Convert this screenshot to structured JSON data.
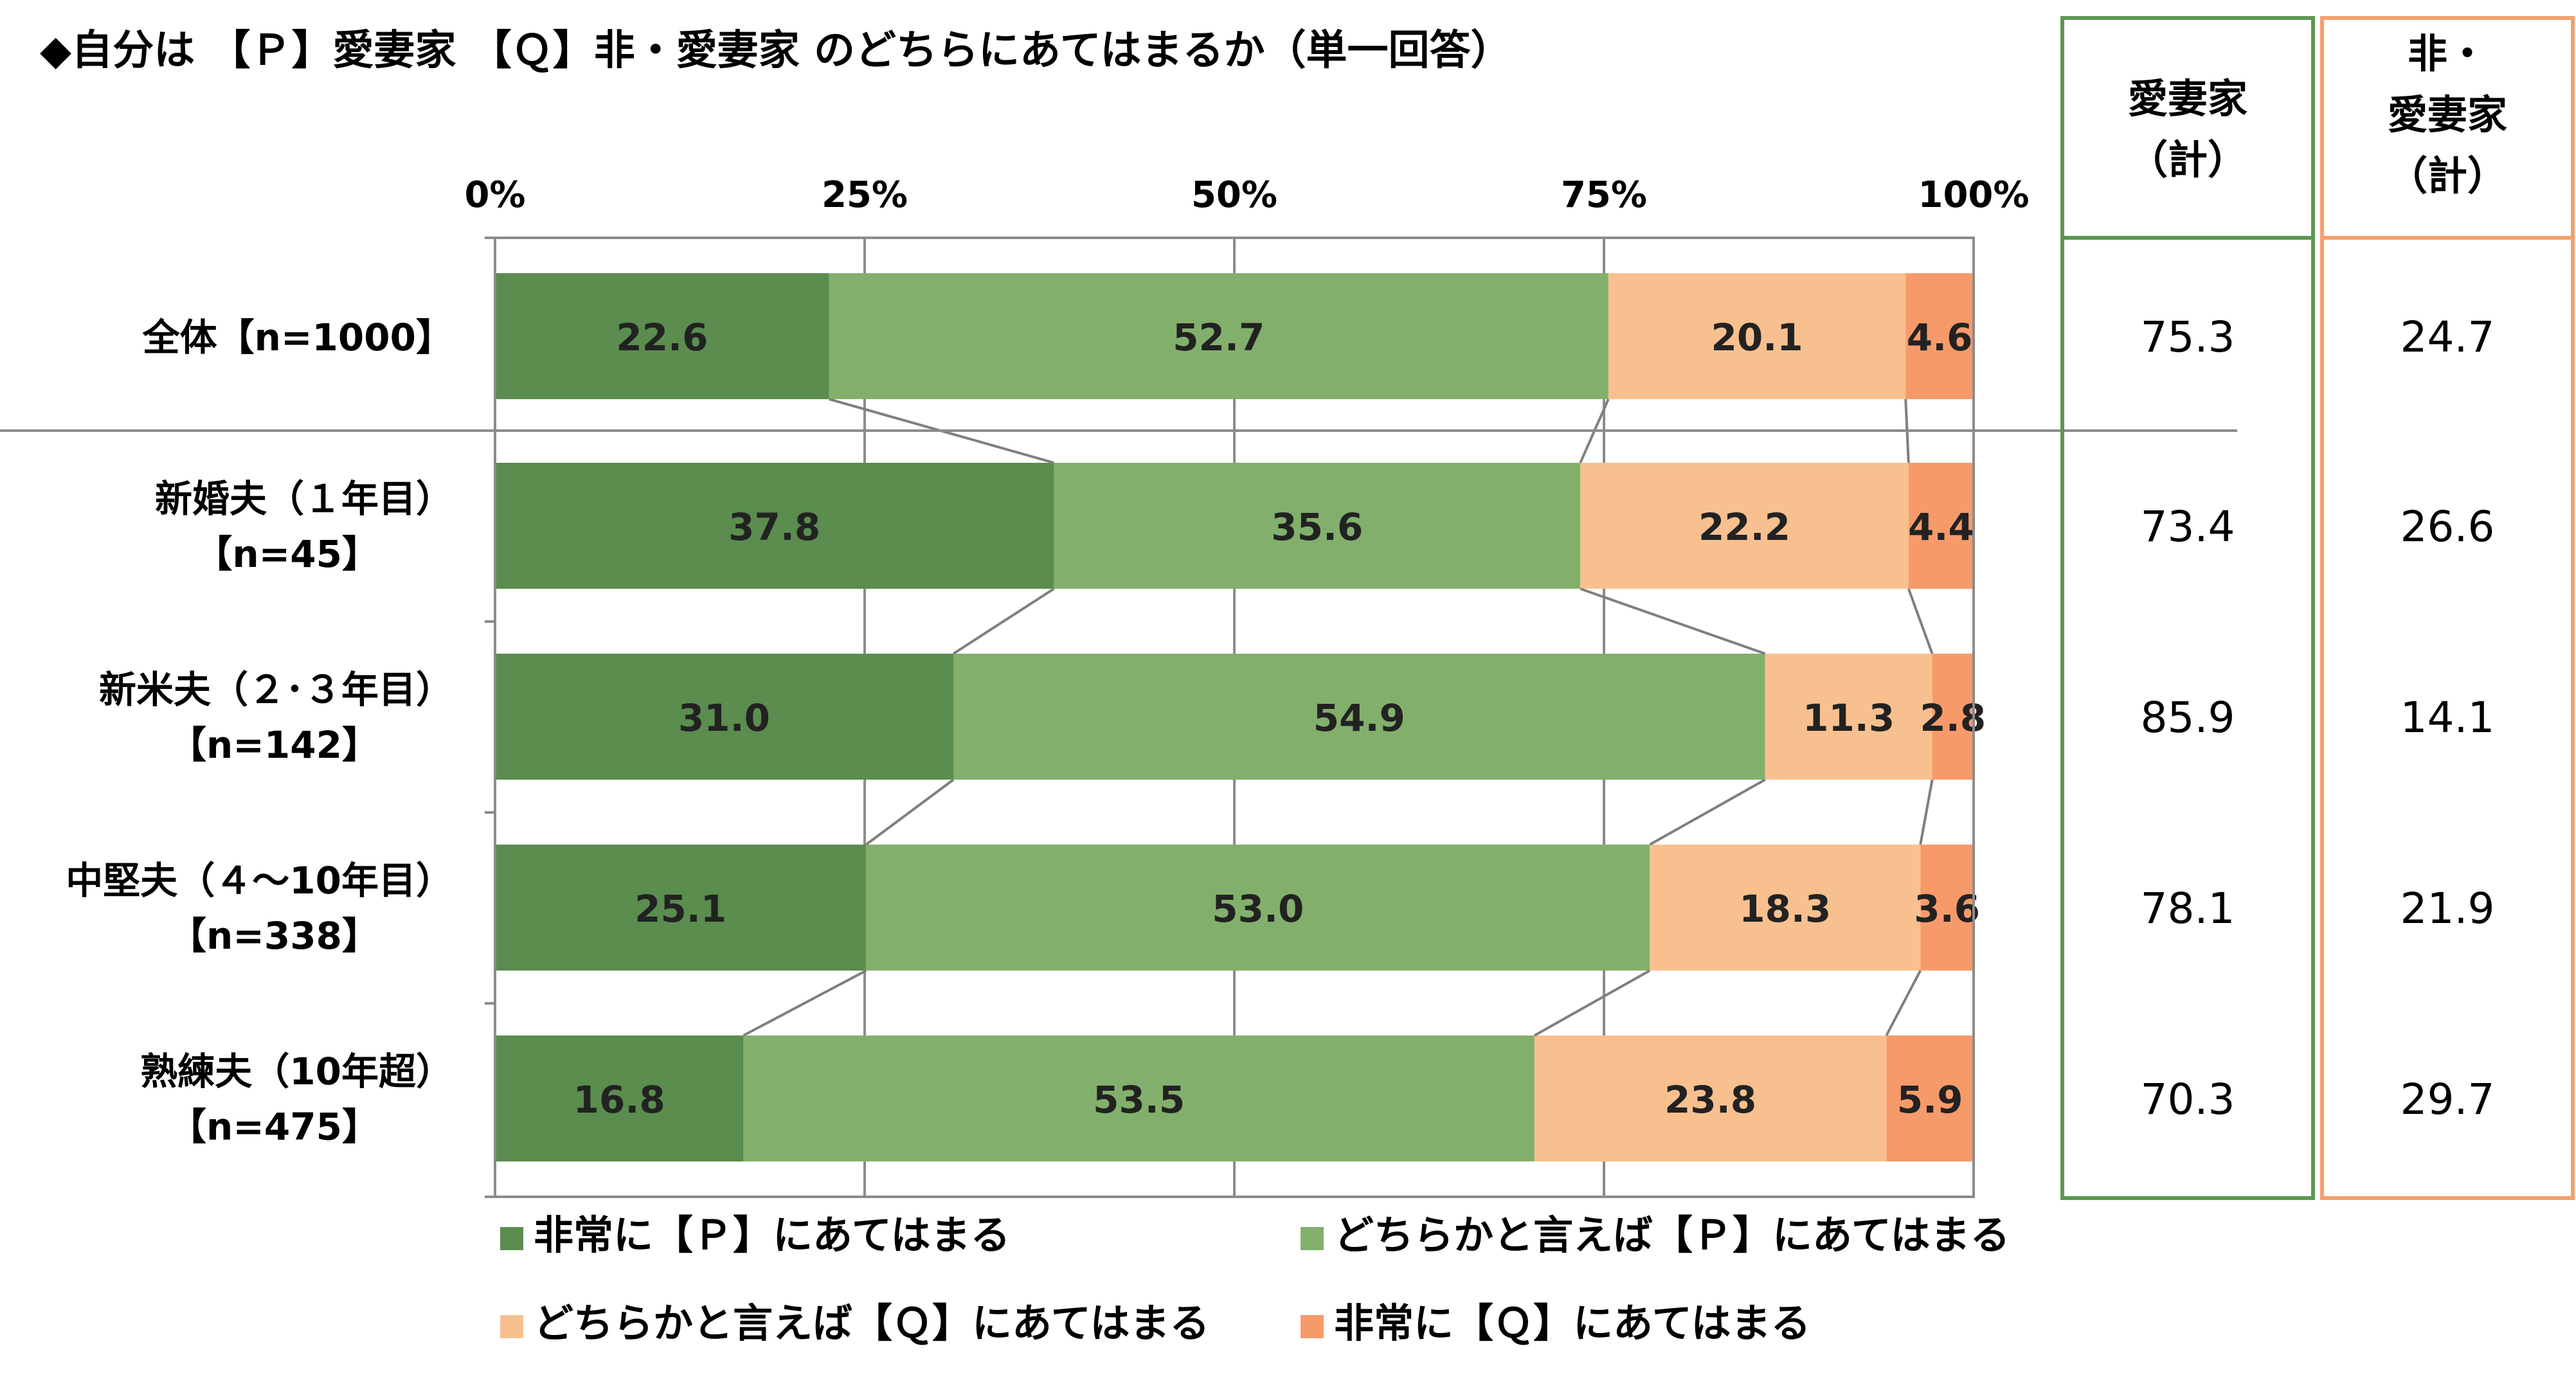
{
  "chart_data": {
    "type": "bar",
    "stacked": true,
    "orientation": "horizontal",
    "title": "◆自分は 【Ｐ】愛妻家 【Ｑ】非・愛妻家 のどちらにあてはまるか（単一回答）",
    "xlim": [
      0,
      100
    ],
    "x_ticks": [
      "0%",
      "25%",
      "50%",
      "75%",
      "100%"
    ],
    "grid": true,
    "legend_position": "bottom",
    "categories": [
      {
        "line1": "全体【n=1000】",
        "line2": ""
      },
      {
        "line1": "新婚夫（１年目）",
        "line2": "【n=45】"
      },
      {
        "line1": "新米夫（２･３年目）",
        "line2": "【n=142】"
      },
      {
        "line1": "中堅夫（４～10年目）",
        "line2": "【n=338】"
      },
      {
        "line1": "熟練夫（10年超）",
        "line2": "【n=475】"
      }
    ],
    "series": [
      {
        "name": "非常に【Ｐ】にあてはまる",
        "color": "#5a8d4e",
        "values": [
          22.6,
          37.8,
          31.0,
          25.1,
          16.8
        ],
        "labels": [
          "22.6",
          "37.8",
          "31.0",
          "25.1",
          "16.8"
        ]
      },
      {
        "name": "どちらかと言えば【Ｐ】にあてはまる",
        "color": "#82b06c",
        "values": [
          52.7,
          35.6,
          54.9,
          53.0,
          53.5
        ],
        "labels": [
          "52.7",
          "35.6",
          "54.9",
          "53.0",
          "53.5"
        ]
      },
      {
        "name": "どちらかと言えば【Ｑ】にあてはまる",
        "color": "#f8c08f",
        "values": [
          20.1,
          22.2,
          11.3,
          18.3,
          23.8
        ],
        "labels": [
          "20.1",
          "22.2",
          "11.3",
          "18.3",
          "23.8"
        ]
      },
      {
        "name": "非常に【Ｑ】にあてはまる",
        "color": "#f79a6a",
        "values": [
          4.6,
          4.4,
          2.8,
          3.6,
          5.9
        ],
        "labels": [
          "4.6",
          "4.4",
          "2.8",
          "3.6",
          "5.9"
        ]
      }
    ],
    "summary_columns": [
      {
        "header": [
          "愛妻家",
          "（計）"
        ],
        "border_color": "#5e9650",
        "values": [
          "75.3",
          "73.4",
          "85.9",
          "78.1",
          "70.3"
        ]
      },
      {
        "header": [
          "非・",
          "愛妻家",
          "（計）"
        ],
        "border_color": "#f4a06e",
        "values": [
          "24.7",
          "26.6",
          "14.1",
          "21.9",
          "29.7"
        ]
      }
    ]
  }
}
